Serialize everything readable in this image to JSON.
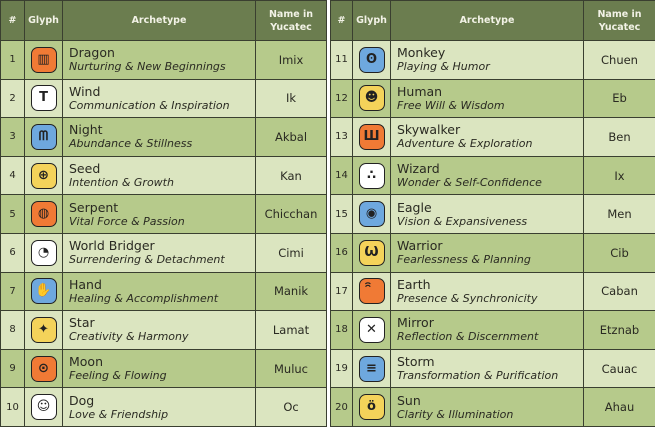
{
  "headers": {
    "num": "#",
    "glyph": "Glyph",
    "archetype": "Archetype",
    "name": "Name in Yucatec"
  },
  "colors": {
    "header": "#6b7d4f",
    "row_dark": "#b6ca8b",
    "row_light": "#dbe5c0",
    "orange": "#f07a35",
    "white": "#ffffff",
    "blue": "#6ea8de",
    "yellow": "#f4d35a"
  },
  "left": [
    {
      "num": "1",
      "title": "Dragon",
      "sub": "Nurturing & New Beginnings",
      "name": "Imix",
      "glyph_color": "orange",
      "icon": "dragon-glyph-icon",
      "sym": "▥"
    },
    {
      "num": "2",
      "title": "Wind",
      "sub": "Communication & Inspiration",
      "name": "Ik",
      "glyph_color": "white",
      "icon": "wind-glyph-icon",
      "sym": "T"
    },
    {
      "num": "3",
      "title": "Night",
      "sub": "Abundance & Stillness",
      "name": "Akbal",
      "glyph_color": "blue",
      "icon": "night-glyph-icon",
      "sym": "ᗰ"
    },
    {
      "num": "4",
      "title": "Seed",
      "sub": "Intention & Growth",
      "name": "Kan",
      "glyph_color": "yellow",
      "icon": "seed-glyph-icon",
      "sym": "⊕"
    },
    {
      "num": "5",
      "title": "Serpent",
      "sub": "Vital Force & Passion",
      "name": "Chicchan",
      "glyph_color": "orange",
      "icon": "serpent-glyph-icon",
      "sym": "◍"
    },
    {
      "num": "6",
      "title": "World Bridger",
      "sub": "Surrendering & Detachment",
      "name": "Cimi",
      "glyph_color": "white",
      "icon": "world-bridger-glyph-icon",
      "sym": "◔"
    },
    {
      "num": "7",
      "title": "Hand",
      "sub": "Healing & Accomplishment",
      "name": "Manik",
      "glyph_color": "blue",
      "icon": "hand-glyph-icon",
      "sym": "✋"
    },
    {
      "num": "8",
      "title": "Star",
      "sub": "Creativity & Harmony",
      "name": "Lamat",
      "glyph_color": "yellow",
      "icon": "star-glyph-icon",
      "sym": "✦"
    },
    {
      "num": "9",
      "title": "Moon",
      "sub": "Feeling & Flowing",
      "name": "Muluc",
      "glyph_color": "orange",
      "icon": "moon-glyph-icon",
      "sym": "⊙"
    },
    {
      "num": "10",
      "title": "Dog",
      "sub": "Love & Friendship",
      "name": "Oc",
      "glyph_color": "white",
      "icon": "dog-glyph-icon",
      "sym": "☺"
    }
  ],
  "right": [
    {
      "num": "11",
      "title": "Monkey",
      "sub": "Playing & Humor",
      "name": "Chuen",
      "glyph_color": "blue",
      "icon": "monkey-glyph-icon",
      "sym": "ʘ"
    },
    {
      "num": "12",
      "title": "Human",
      "sub": "Free Will & Wisdom",
      "name": "Eb",
      "glyph_color": "yellow",
      "icon": "human-glyph-icon",
      "sym": "☻"
    },
    {
      "num": "13",
      "title": "Skywalker",
      "sub": "Adventure & Exploration",
      "name": "Ben",
      "glyph_color": "orange",
      "icon": "skywalker-glyph-icon",
      "sym": "Ш"
    },
    {
      "num": "14",
      "title": "Wizard",
      "sub": "Wonder & Self-Confidence",
      "name": "Ix",
      "glyph_color": "white",
      "icon": "wizard-glyph-icon",
      "sym": "∴"
    },
    {
      "num": "15",
      "title": "Eagle",
      "sub": "Vision & Expansiveness",
      "name": "Men",
      "glyph_color": "blue",
      "icon": "eagle-glyph-icon",
      "sym": "◉"
    },
    {
      "num": "16",
      "title": "Warrior",
      "sub": "Fearlessness & Planning",
      "name": "Cib",
      "glyph_color": "yellow",
      "icon": "warrior-glyph-icon",
      "sym": "Ѡ"
    },
    {
      "num": "17",
      "title": "Earth",
      "sub": "Presence & Synchronicity",
      "name": "Caban",
      "glyph_color": "orange",
      "icon": "earth-glyph-icon",
      "sym": "ꩰ"
    },
    {
      "num": "18",
      "title": "Mirror",
      "sub": "Reflection & Discernment",
      "name": "Etznab",
      "glyph_color": "white",
      "icon": "mirror-glyph-icon",
      "sym": "✕"
    },
    {
      "num": "19",
      "title": "Storm",
      "sub": "Transformation & Purification",
      "name": "Cauac",
      "glyph_color": "blue",
      "icon": "storm-glyph-icon",
      "sym": "≡"
    },
    {
      "num": "20",
      "title": "Sun",
      "sub": "Clarity & Illumination",
      "name": "Ahau",
      "glyph_color": "yellow",
      "icon": "sun-glyph-icon",
      "sym": "ö"
    }
  ]
}
